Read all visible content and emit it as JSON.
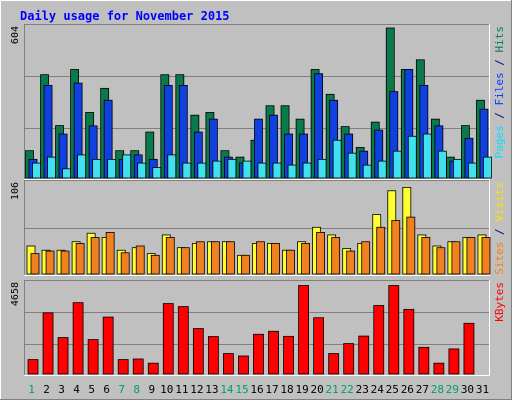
{
  "chart_data": {
    "type": "bar",
    "title": "Daily usage for November 2015",
    "categories": [
      "1",
      "2",
      "3",
      "4",
      "5",
      "6",
      "7",
      "8",
      "9",
      "10",
      "11",
      "12",
      "13",
      "14",
      "15",
      "16",
      "17",
      "18",
      "19",
      "20",
      "21",
      "22",
      "23",
      "24",
      "25",
      "26",
      "27",
      "28",
      "29",
      "30",
      "31"
    ],
    "weekend_days": [
      "1",
      "7",
      "8",
      "14",
      "15",
      "21",
      "22",
      "28",
      "29"
    ],
    "panels": [
      {
        "id": "hits",
        "max_label": "604",
        "ymax": 604,
        "legend": [
          {
            "text": "Pages",
            "color": "#00e0ff"
          },
          {
            "text": " / ",
            "color": "#000080"
          },
          {
            "text": "Files",
            "color": "#0040ff"
          },
          {
            "text": " / ",
            "color": "#000080"
          },
          {
            "text": "Hits",
            "color": "#008060"
          }
        ],
        "series": [
          {
            "name": "Hits",
            "color": "#0a7a4a",
            "values": [
              110,
              416,
              211,
              437,
              264,
              361,
              110,
              110,
              185,
              416,
              416,
              253,
              264,
              110,
              84,
              152,
              291,
              291,
              237,
              437,
              337,
              207,
              123,
              225,
              604,
              437,
              476,
              237,
              84,
              211,
              313
            ]
          },
          {
            "name": "Files",
            "color": "#1040e0",
            "values": [
              75,
              373,
              177,
              382,
              210,
              313,
              75,
              93,
              75,
              373,
              373,
              185,
              237,
              84,
              60,
              237,
              253,
              177,
              177,
              420,
              313,
              177,
              108,
              193,
              348,
              437,
              373,
              210,
              68,
              160,
              277
            ]
          },
          {
            "name": "Pages",
            "color": "#40e0f0",
            "values": [
              60,
              84,
              37,
              93,
              75,
              75,
              93,
              60,
              42,
              93,
              60,
              60,
              68,
              75,
              68,
              60,
              60,
              52,
              60,
              75,
              152,
              100,
              52,
              68,
              108,
              168,
              177,
              108,
              75,
              60,
              84
            ]
          }
        ]
      },
      {
        "id": "visits",
        "max_label": "106",
        "ymax": 106,
        "legend": [
          {
            "text": "Sites",
            "color": "#ff8000"
          },
          {
            "text": " / ",
            "color": "#000080"
          },
          {
            "text": "Visits",
            "color": "#ffe000"
          }
        ],
        "series": [
          {
            "name": "Visits",
            "color": "#ffff30",
            "values": [
              33,
              28,
              28,
              38,
              48,
              43,
              28,
              31,
              24,
              46,
              31,
              36,
              38,
              38,
              22,
              36,
              36,
              28,
              38,
              55,
              46,
              30,
              36,
              70,
              98,
              102,
              46,
              33,
              38,
              43,
              46
            ]
          },
          {
            "name": "Sites",
            "color": "#f08020",
            "values": [
              24,
              27,
              27,
              36,
              43,
              49,
              25,
              33,
              22,
              43,
              31,
              38,
              38,
              38,
              22,
              38,
              36,
              28,
              36,
              49,
              43,
              27,
              38,
              55,
              63,
              67,
              43,
              31,
              38,
              43,
              43
            ]
          }
        ]
      },
      {
        "id": "kbytes",
        "max_label": "4658",
        "ymax": 4658,
        "legend": [
          {
            "text": "KBytes",
            "color": "#ff0000"
          }
        ],
        "series": [
          {
            "name": "KBytes",
            "color": "#ff0000",
            "values": [
              747,
              3164,
              1887,
              3693,
              1782,
              2946,
              747,
              778,
              560,
              3646,
              3490,
              2352,
              1938,
              1058,
              933,
              2056,
              2212,
              1949,
              4580,
              2913,
              1058,
              1574,
              1963,
              3545,
              4580,
              3345,
              1380,
              560,
              1300,
              2624,
              0
            ]
          }
        ]
      }
    ]
  }
}
